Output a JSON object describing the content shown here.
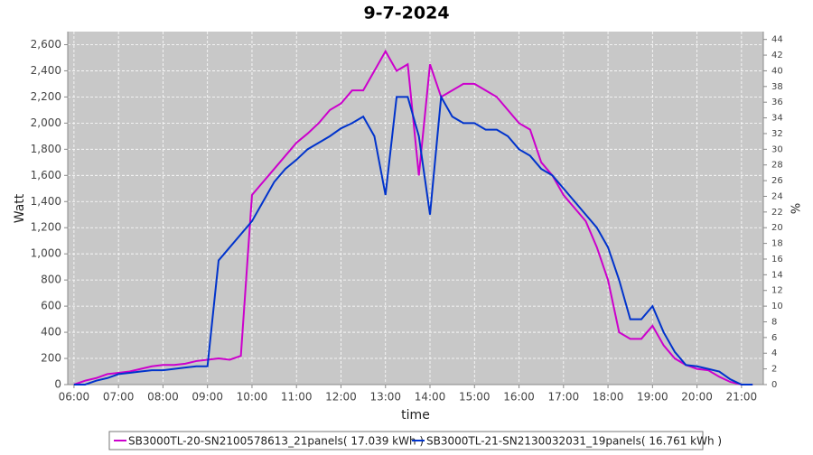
{
  "chart_data": {
    "type": "line",
    "title": "9-7-2024",
    "x_label": "time",
    "y_label": "Watt",
    "y2_label": "%",
    "x": [
      6.0,
      6.25,
      6.5,
      6.75,
      7.0,
      7.25,
      7.5,
      7.75,
      8.0,
      8.25,
      8.5,
      8.75,
      9.0,
      9.25,
      9.5,
      9.75,
      10.0,
      10.25,
      10.5,
      10.75,
      11.0,
      11.25,
      11.5,
      11.75,
      12.0,
      12.25,
      12.5,
      12.75,
      13.0,
      13.25,
      13.5,
      13.75,
      14.0,
      14.25,
      14.5,
      14.75,
      15.0,
      15.25,
      15.5,
      15.75,
      16.0,
      16.25,
      16.5,
      16.75,
      17.0,
      17.25,
      17.5,
      17.75,
      18.0,
      18.25,
      18.5,
      18.75,
      19.0,
      19.25,
      19.5,
      19.75,
      20.0,
      20.25,
      20.5,
      20.75,
      21.0,
      21.25
    ],
    "xlim": [
      5.86,
      21.49
    ],
    "xticks": [
      {
        "value": 6,
        "label": "06:00"
      },
      {
        "value": 7,
        "label": "07:00"
      },
      {
        "value": 8,
        "label": "08:00"
      },
      {
        "value": 9,
        "label": "09:00"
      },
      {
        "value": 10,
        "label": "10:00"
      },
      {
        "value": 11,
        "label": "11:00"
      },
      {
        "value": 12,
        "label": "12:00"
      },
      {
        "value": 13,
        "label": "13:00"
      },
      {
        "value": 14,
        "label": "14:00"
      },
      {
        "value": 15,
        "label": "15:00"
      },
      {
        "value": 16,
        "label": "16:00"
      },
      {
        "value": 17,
        "label": "17:00"
      },
      {
        "value": 18,
        "label": "18:00"
      },
      {
        "value": 19,
        "label": "19:00"
      },
      {
        "value": 20,
        "label": "20:00"
      },
      {
        "value": 21,
        "label": "21:00"
      }
    ],
    "ylim": [
      0,
      2700
    ],
    "yticks": [
      0,
      200,
      400,
      600,
      800,
      {
        "value": 1000,
        "label": "1,000"
      },
      {
        "value": 1200,
        "label": "1,200"
      },
      {
        "value": 1400,
        "label": "1,400"
      },
      {
        "value": 1600,
        "label": "1,600"
      },
      {
        "value": 1800,
        "label": "1,800"
      },
      {
        "value": 2000,
        "label": "2,000"
      },
      {
        "value": 2200,
        "label": "2,200"
      },
      {
        "value": 2400,
        "label": "2,400"
      },
      {
        "value": 2600,
        "label": "2,600"
      }
    ],
    "y2lim": [
      0,
      45
    ],
    "y2ticks": [
      0,
      2,
      4,
      6,
      8,
      10,
      12,
      14,
      16,
      18,
      20,
      22,
      24,
      26,
      28,
      30,
      32,
      34,
      36,
      38,
      40,
      42,
      44
    ],
    "grid": true,
    "series": [
      {
        "name": "SB3000TL-20-SN2100578613_21panels( 17.039 kWh )",
        "color": "#cc00cc",
        "values": [
          0,
          30,
          50,
          80,
          90,
          100,
          120,
          140,
          150,
          150,
          160,
          180,
          190,
          200,
          190,
          220,
          1450,
          1550,
          1650,
          1750,
          1850,
          1920,
          2000,
          2100,
          2150,
          2250,
          2250,
          2400,
          2550,
          2400,
          2450,
          1600,
          2450,
          2200,
          2250,
          2300,
          2300,
          2250,
          2200,
          2100,
          2000,
          1950,
          1700,
          1600,
          1450,
          1350,
          1250,
          1050,
          800,
          400,
          350,
          350,
          450,
          300,
          200,
          150,
          120,
          110,
          60,
          20,
          0,
          0
        ]
      },
      {
        "name": "SB3000TL-21-SN2130032031_19panels( 16.761 kWh )",
        "color": "#0033cc",
        "values": [
          0,
          0,
          30,
          50,
          80,
          90,
          100,
          110,
          110,
          120,
          130,
          140,
          140,
          950,
          1050,
          1150,
          1250,
          1400,
          1550,
          1650,
          1720,
          1800,
          1850,
          1900,
          1960,
          2000,
          2050,
          1900,
          1450,
          2200,
          2200,
          1900,
          1300,
          2200,
          2050,
          2000,
          2000,
          1950,
          1950,
          1900,
          1800,
          1750,
          1650,
          1600,
          1500,
          1400,
          1300,
          1200,
          1050,
          800,
          500,
          500,
          600,
          400,
          250,
          150,
          140,
          120,
          100,
          40,
          0,
          0
        ]
      }
    ]
  }
}
